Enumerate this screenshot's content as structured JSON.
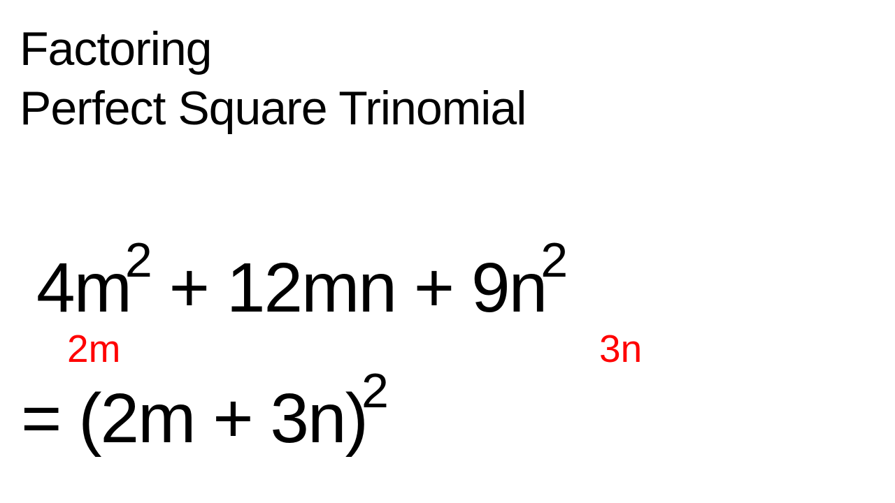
{
  "title": {
    "line1": "Factoring",
    "line2": "Perfect Square Trinomial"
  },
  "equation": {
    "term1_coefficient": "4m",
    "term1_exponent": "2",
    "operator1": " + ",
    "term2": "12mn",
    "operator2": " + ",
    "term3_coefficient": "9n",
    "term3_exponent": "2"
  },
  "annotations": {
    "first_root": "2m",
    "second_root": "3n",
    "annotation_color": "#ff0000"
  },
  "result": {
    "equals": "= ",
    "open_paren": "(",
    "term1": "2m",
    "operator": " + ",
    "term2": "3n",
    "close_paren": ")",
    "exponent": "2"
  },
  "styling": {
    "background_color": "#ffffff",
    "text_color": "#000000",
    "title_fontsize": 68,
    "equation_fontsize": 100,
    "superscript_fontsize": 70,
    "annotation_fontsize": 55,
    "font_family": "Arial"
  }
}
